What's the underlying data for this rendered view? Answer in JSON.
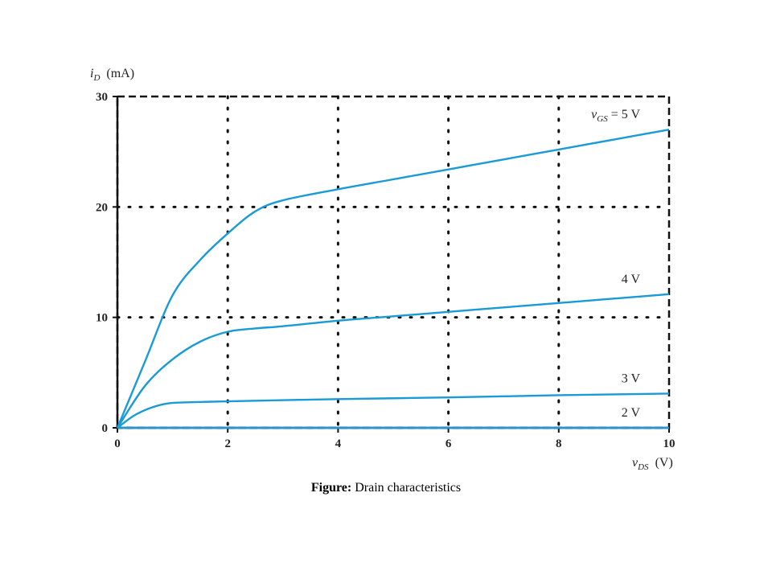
{
  "caption": {
    "label": "Figure:",
    "text": "Drain characteristics"
  },
  "chart_data": {
    "type": "line",
    "x_axis": {
      "symbol": "v",
      "subscript": "DS",
      "unit": "(V)",
      "lim": [
        0,
        10
      ],
      "ticks": [
        "0",
        "2",
        "4",
        "6",
        "8",
        "10"
      ]
    },
    "y_axis": {
      "symbol": "i",
      "subscript": "D",
      "unit": "(mA)",
      "lim": [
        0,
        30
      ],
      "ticks": [
        "0",
        "10",
        "20",
        "30"
      ]
    },
    "grid": "dotted",
    "curve_color": "#1a9ad6",
    "series": [
      {
        "name": "5 V",
        "label_prefix": "v",
        "label_sub": "GS",
        "label_suffix": " = 5 V",
        "x": [
          0,
          0.5,
          1,
          1.5,
          2,
          2.5,
          3,
          4,
          5,
          6,
          7,
          8,
          9,
          10
        ],
        "y": [
          0,
          6,
          12,
          15.2,
          17.6,
          19.6,
          20.6,
          21.6,
          22.5,
          23.4,
          24.3,
          25.2,
          26.1,
          27
        ]
      },
      {
        "name": "4 V",
        "label_prefix": "",
        "label_sub": "",
        "label_suffix": "4 V",
        "x": [
          0,
          0.5,
          1,
          1.5,
          2,
          2.5,
          3,
          4,
          5,
          6,
          7,
          8,
          9,
          10
        ],
        "y": [
          0,
          3.8,
          6.2,
          7.8,
          8.7,
          9.0,
          9.2,
          9.7,
          10.1,
          10.5,
          10.9,
          11.3,
          11.7,
          12.1
        ]
      },
      {
        "name": "3 V",
        "label_prefix": "",
        "label_sub": "",
        "label_suffix": "3 V",
        "x": [
          0,
          0.3,
          0.6,
          0.9,
          1.2,
          2,
          4,
          6,
          8,
          10
        ],
        "y": [
          0,
          1.1,
          1.8,
          2.2,
          2.3,
          2.4,
          2.6,
          2.75,
          2.95,
          3.1
        ]
      },
      {
        "name": "2 V",
        "label_prefix": "",
        "label_sub": "",
        "label_suffix": "2 V",
        "x": [
          0,
          10
        ],
        "y": [
          0,
          0
        ]
      }
    ]
  }
}
